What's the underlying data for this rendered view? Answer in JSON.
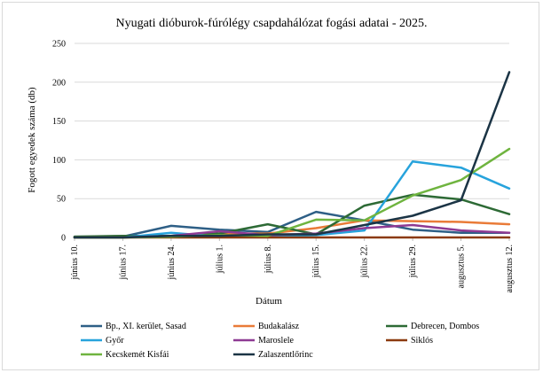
{
  "chart_data": {
    "type": "line",
    "title": "Nyugati dióburok-fúrólégy csapdahálózat fogási adatai - 2025.",
    "xlabel": "Dátum",
    "ylabel": "Fogott egyedek száma (db)",
    "ylim": [
      0,
      250
    ],
    "yticks": [
      0,
      50,
      100,
      150,
      200,
      250
    ],
    "grid": "horizontal",
    "legend_position": "bottom",
    "categories": [
      "június 10.",
      "június 17.",
      "június 24.",
      "július 1.",
      "július 8.",
      "július 15.",
      "július 22.",
      "július 29.",
      "augusztus 5.",
      "augusztus 12."
    ],
    "series": [
      {
        "name": "Bp., XI. kerület, Sasad",
        "color": "#2e5f86",
        "values": [
          1,
          1,
          15,
          10,
          7,
          33,
          22,
          10,
          6,
          6
        ]
      },
      {
        "name": "Budakalász",
        "color": "#e97b38",
        "values": [
          0,
          0,
          2,
          5,
          5,
          12,
          22,
          21,
          20,
          17
        ]
      },
      {
        "name": "Debrecen, Dombos",
        "color": "#2d6a35",
        "values": [
          1,
          2,
          2,
          5,
          17,
          4,
          41,
          55,
          49,
          30
        ]
      },
      {
        "name": "Győr",
        "color": "#27a3dc",
        "values": [
          0,
          0,
          6,
          1,
          1,
          3,
          9,
          98,
          90,
          63
        ]
      },
      {
        "name": "Maroslele",
        "color": "#8e3a93",
        "values": [
          0,
          0,
          2,
          8,
          3,
          5,
          12,
          16,
          9,
          6
        ]
      },
      {
        "name": "Siklós",
        "color": "#8b3a0f",
        "values": [
          0,
          0,
          0,
          0,
          0,
          0,
          0,
          0,
          0,
          0
        ]
      },
      {
        "name": "Kecskemét Kisfái",
        "color": "#6fb43f",
        "values": [
          0,
          0,
          1,
          3,
          2,
          23,
          22,
          54,
          74,
          114
        ]
      },
      {
        "name": "Zalaszentlőrinc",
        "color": "#1b3445",
        "values": [
          0,
          0,
          2,
          2,
          4,
          4,
          16,
          28,
          48,
          213
        ]
      }
    ]
  }
}
